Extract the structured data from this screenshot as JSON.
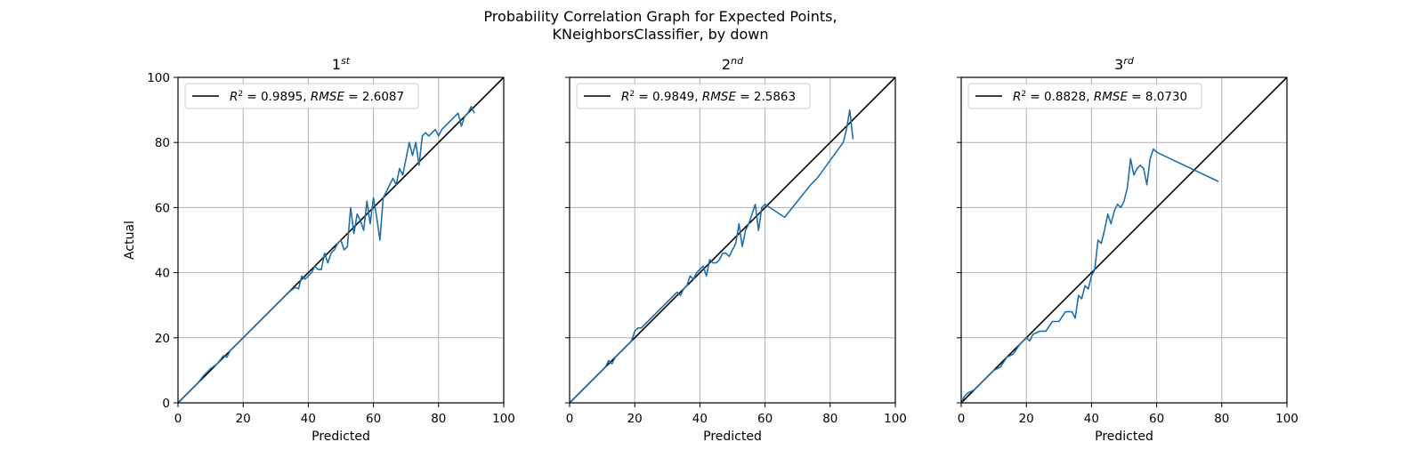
{
  "figure": {
    "title_line1": "Probability Correlation Graph for Expected Points,",
    "title_line2": "KNeighborsClassifier, by down"
  },
  "colors": {
    "series": "#1f6fa8",
    "reference": "#000000",
    "grid": "#b0b0b0"
  },
  "chart_data": [
    {
      "type": "line",
      "title": "1",
      "title_sup": "st",
      "xlabel": "Predicted",
      "ylabel": "Actual",
      "xlim": [
        0,
        100
      ],
      "ylim": [
        0,
        100
      ],
      "xticks": [
        0,
        20,
        40,
        60,
        80,
        100
      ],
      "yticks": [
        0,
        20,
        40,
        60,
        80,
        100
      ],
      "grid": true,
      "legend": {
        "placement": "top-left",
        "r2": "0.9895",
        "rmse": "2.6087"
      },
      "reference_line": {
        "x": [
          0,
          100
        ],
        "y": [
          0,
          100
        ]
      },
      "series": [
        {
          "x": [
            0,
            2,
            4,
            6,
            8,
            10,
            12,
            14,
            15,
            16,
            18,
            20,
            22,
            24,
            26,
            28,
            30,
            32,
            34,
            36,
            37,
            38,
            39,
            40,
            41,
            42,
            43,
            44,
            45,
            46,
            47,
            48,
            49,
            50,
            51,
            52,
            53,
            54,
            55,
            56,
            57,
            58,
            59,
            60,
            61,
            62,
            63,
            64,
            65,
            66,
            67,
            68,
            69,
            70,
            71,
            72,
            73,
            74,
            75,
            76,
            77,
            78,
            79,
            80,
            81,
            82,
            83,
            84,
            85,
            86,
            87,
            88,
            89,
            90,
            91
          ],
          "y": [
            0,
            2,
            4,
            6,
            8.5,
            10.5,
            12,
            14.5,
            14,
            16,
            18,
            20,
            22,
            24,
            26,
            28,
            30,
            32,
            34,
            35.5,
            35,
            39,
            38,
            39,
            40,
            42,
            41,
            41,
            46,
            43,
            46,
            47,
            49,
            50,
            47,
            48,
            60,
            52,
            58,
            56,
            53,
            62,
            55,
            63,
            57,
            50,
            63,
            65,
            67,
            69,
            67,
            72,
            70,
            75,
            80,
            76,
            80,
            73,
            82,
            83,
            82,
            83,
            84,
            82,
            84,
            85,
            86,
            87,
            88,
            89,
            85,
            88,
            89,
            91,
            89
          ]
        }
      ]
    },
    {
      "type": "line",
      "title": "2",
      "title_sup": "nd",
      "xlabel": "Predicted",
      "ylabel": "",
      "xlim": [
        0,
        100
      ],
      "ylim": [
        0,
        100
      ],
      "xticks": [
        0,
        20,
        40,
        60,
        80,
        100
      ],
      "yticks": [
        0,
        20,
        40,
        60,
        80,
        100
      ],
      "grid": true,
      "legend": {
        "placement": "top-left",
        "r2": "0.9849",
        "rmse": "2.5863"
      },
      "reference_line": {
        "x": [
          0,
          100
        ],
        "y": [
          0,
          100
        ]
      },
      "series": [
        {
          "x": [
            0,
            2,
            4,
            6,
            8,
            10,
            11,
            12,
            13,
            14,
            16,
            18,
            19,
            20,
            21,
            22,
            24,
            26,
            28,
            30,
            32,
            33,
            34,
            35,
            36,
            37,
            38,
            39,
            40,
            41,
            42,
            43,
            44,
            45,
            46,
            47,
            48,
            49,
            50,
            51,
            52,
            53,
            54,
            55,
            56,
            57,
            58,
            59,
            60,
            66,
            70,
            74,
            76,
            84,
            85,
            86,
            87
          ],
          "y": [
            0,
            2,
            4,
            6,
            8,
            10,
            11,
            13,
            12,
            14,
            16,
            18,
            19,
            22,
            23,
            23,
            25,
            27,
            29,
            31,
            33,
            34,
            33,
            35,
            36,
            39,
            38,
            40,
            41,
            42,
            39,
            44,
            43,
            43,
            44,
            46,
            46,
            45,
            47,
            49,
            55,
            48,
            53,
            55,
            58,
            61,
            53,
            60,
            61,
            57,
            62,
            67,
            69,
            80,
            84,
            90,
            81
          ]
        }
      ]
    },
    {
      "type": "line",
      "title": "3",
      "title_sup": "rd",
      "xlabel": "Predicted",
      "ylabel": "",
      "xlim": [
        0,
        100
      ],
      "ylim": [
        0,
        100
      ],
      "xticks": [
        0,
        20,
        40,
        60,
        80,
        100
      ],
      "yticks": [
        0,
        20,
        40,
        60,
        80,
        100
      ],
      "grid": true,
      "legend": {
        "placement": "top-left",
        "r2": "0.8828",
        "rmse": "8.0730"
      },
      "reference_line": {
        "x": [
          0,
          100
        ],
        "y": [
          0,
          100
        ]
      },
      "series": [
        {
          "x": [
            0,
            1,
            2,
            4,
            6,
            8,
            10,
            12,
            14,
            16,
            18,
            20,
            21,
            22,
            24,
            26,
            28,
            30,
            32,
            34,
            35,
            36,
            37,
            38,
            39,
            40,
            41,
            42,
            43,
            44,
            45,
            46,
            47,
            48,
            49,
            50,
            51,
            52,
            53,
            54,
            55,
            56,
            57,
            58,
            59,
            60,
            79
          ],
          "y": [
            0,
            2,
            3,
            4,
            6,
            8,
            10,
            11,
            14,
            15,
            18,
            20,
            19,
            21,
            22,
            22,
            25,
            25,
            28,
            28,
            26,
            33,
            32,
            36,
            35,
            39,
            41,
            50,
            49,
            53,
            58,
            55,
            59,
            61,
            60,
            62,
            66,
            75,
            70,
            72,
            73,
            72,
            67,
            75,
            78,
            77,
            68
          ]
        }
      ]
    }
  ]
}
